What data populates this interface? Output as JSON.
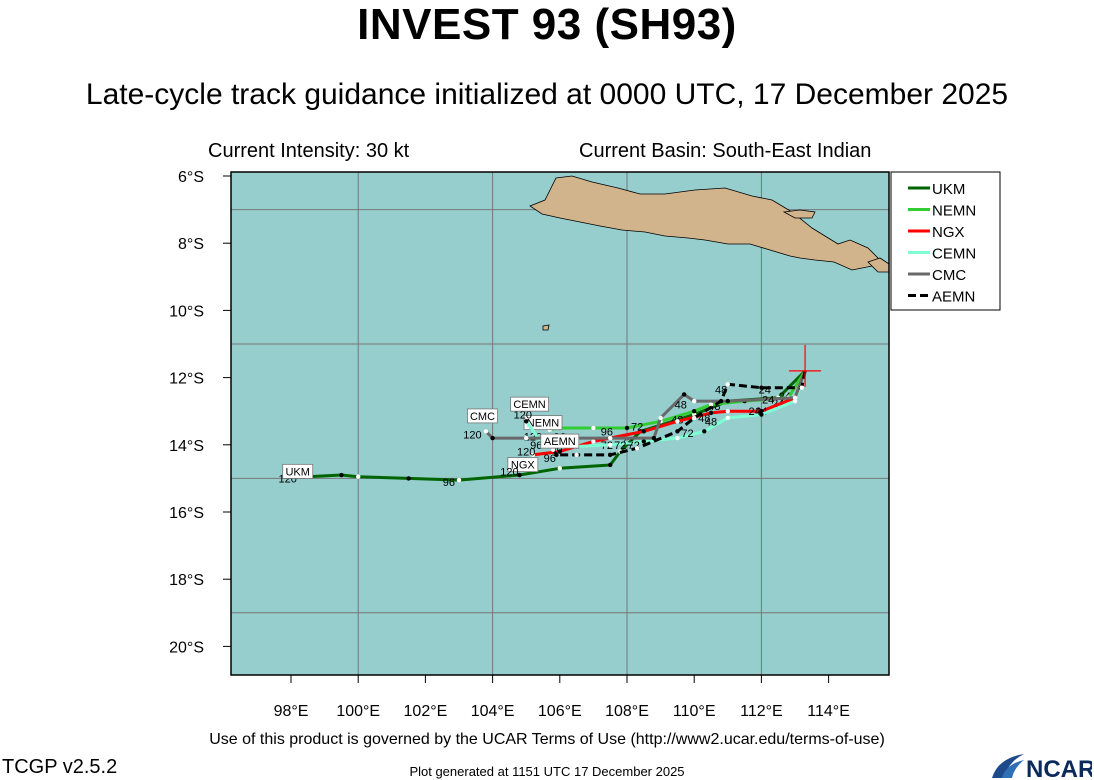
{
  "header": {
    "title": "INVEST 93 (SH93)",
    "subtitle": "Late-cycle track guidance initialized at 0000 UTC, 17 December 2025",
    "intensity": "Current Intensity: 30 kt",
    "basin": "Current Basin: South-East Indian"
  },
  "footer": {
    "terms": "Use of this product is governed by the UCAR Terms of Use (http://www2.ucar.edu/terms-of-use)",
    "version": "TCGP v2.5.2",
    "generated": "Plot generated at 1151 UTC   17 December 2025",
    "logo": "NCAR"
  },
  "map": {
    "lat_labels": [
      "6°S",
      "8°S",
      "10°S",
      "12°S",
      "14°S",
      "16°S",
      "18°S",
      "20°S"
    ],
    "lon_labels": [
      "98°E",
      "100°E",
      "102°E",
      "104°E",
      "106°E",
      "108°E",
      "110°E",
      "112°E",
      "114°E"
    ],
    "ocean_color": "#96cdcd",
    "land_color": "#d2b48c",
    "current_position": {
      "lon": 113.3,
      "lat": -11.8
    }
  },
  "legend": [
    {
      "name": "UKM",
      "color": "#006400"
    },
    {
      "name": "NEMN",
      "color": "#32cd32"
    },
    {
      "name": "NGX",
      "color": "#ff0000"
    },
    {
      "name": "CEMN",
      "color": "#7fffd4"
    },
    {
      "name": "CMC",
      "color": "#696969"
    },
    {
      "name": "AEMN",
      "color": "#000000"
    }
  ],
  "tracks": [
    {
      "name": "UKM",
      "color": "#006400",
      "dash": "",
      "points": [
        [
          113.3,
          -11.8
        ],
        [
          112.5,
          -12.6
        ],
        [
          111.0,
          -12.7
        ],
        [
          110.0,
          -13.1
        ],
        [
          108.4,
          -13.6
        ],
        [
          107.8,
          -14.2
        ],
        [
          107.5,
          -14.6
        ],
        [
          106.0,
          -14.7
        ],
        [
          104.8,
          -14.9
        ],
        [
          103.0,
          -15.05
        ],
        [
          101.5,
          -15.0
        ],
        [
          100.0,
          -14.95
        ],
        [
          99.5,
          -14.9
        ],
        [
          98.5,
          -14.95
        ],
        [
          97.9,
          -14.9
        ]
      ],
      "labels": [
        {
          "t": "24",
          "lon": 112.7,
          "lat": -12.55
        },
        {
          "t": "48",
          "lon": 110.6,
          "lat": -12.85
        },
        {
          "t": "72",
          "lon": 108.0,
          "lat": -13.9
        },
        {
          "t": "96",
          "lon": 102.7,
          "lat": -15.1
        },
        {
          "t": "120",
          "lon": 97.9,
          "lat": -15.0
        }
      ],
      "name_tag": {
        "lon": 98.2,
        "lat": -14.85
      }
    },
    {
      "name": "NEMN",
      "color": "#32cd32",
      "dash": "",
      "points": [
        [
          113.3,
          -11.8
        ],
        [
          112.8,
          -12.6
        ],
        [
          111.5,
          -12.7
        ],
        [
          110.5,
          -12.8
        ],
        [
          110.0,
          -13.0
        ],
        [
          109.0,
          -13.3
        ],
        [
          108.0,
          -13.5
        ],
        [
          107.0,
          -13.5
        ],
        [
          106.0,
          -13.5
        ],
        [
          105.7,
          -13.55
        ]
      ],
      "labels": [
        {
          "t": "24",
          "lon": 112.5,
          "lat": -12.75
        },
        {
          "t": "48",
          "lon": 109.5,
          "lat": -13.25
        },
        {
          "t": "72",
          "lon": 108.3,
          "lat": -13.45
        },
        {
          "t": "96",
          "lon": 107.4,
          "lat": -13.6
        },
        {
          "t": "120",
          "lon": 105.2,
          "lat": -13.75
        }
      ],
      "name_tag": {
        "lon": 105.5,
        "lat": -13.4
      }
    },
    {
      "name": "NGX",
      "color": "#ff0000",
      "dash": "",
      "points": [
        [
          113.3,
          -11.8
        ],
        [
          113.0,
          -12.6
        ],
        [
          112.0,
          -13.0
        ],
        [
          111.0,
          -13.0
        ],
        [
          110.5,
          -13.05
        ],
        [
          109.5,
          -13.3
        ],
        [
          108.5,
          -13.6
        ],
        [
          107.0,
          -13.9
        ],
        [
          106.0,
          -14.2
        ],
        [
          105.2,
          -14.3
        ]
      ],
      "labels": [
        {
          "t": "24",
          "lon": 112.0,
          "lat": -13.0
        },
        {
          "t": "48",
          "lon": 110.3,
          "lat": -13.2
        },
        {
          "t": "72",
          "lon": 107.4,
          "lat": -14.0
        },
        {
          "t": "96",
          "lon": 105.9,
          "lat": -14.1
        },
        {
          "t": "120",
          "lon": 105.0,
          "lat": -14.2
        }
      ],
      "name_tag": {
        "lon": 104.9,
        "lat": -14.65
      }
    },
    {
      "name": "CEMN",
      "color": "#7fffd4",
      "dash": "",
      "points": [
        [
          113.3,
          -11.8
        ],
        [
          113.0,
          -12.7
        ],
        [
          112.0,
          -13.1
        ],
        [
          111.0,
          -13.2
        ],
        [
          110.3,
          -13.6
        ],
        [
          109.5,
          -13.8
        ],
        [
          108.5,
          -13.9
        ],
        [
          107.5,
          -14.0
        ],
        [
          106.5,
          -14.05
        ],
        [
          105.5,
          -14.0
        ],
        [
          105.0,
          -13.3
        ]
      ],
      "labels": [
        {
          "t": "24",
          "lon": 111.8,
          "lat": -13.0
        },
        {
          "t": "48",
          "lon": 110.5,
          "lat": -13.3
        },
        {
          "t": "72",
          "lon": 108.2,
          "lat": -14.0
        },
        {
          "t": "96",
          "lon": 105.3,
          "lat": -14.0
        },
        {
          "t": "120",
          "lon": 104.9,
          "lat": -13.1
        }
      ],
      "name_tag": {
        "lon": 105.1,
        "lat": -12.85
      }
    },
    {
      "name": "CMC",
      "color": "#696969",
      "dash": "",
      "points": [
        [
          113.3,
          -11.8
        ],
        [
          113.0,
          -12.6
        ],
        [
          111.0,
          -12.7
        ],
        [
          110.0,
          -12.7
        ],
        [
          109.7,
          -12.5
        ],
        [
          109.0,
          -13.2
        ],
        [
          108.8,
          -13.8
        ],
        [
          107.5,
          -13.8
        ],
        [
          106.0,
          -13.8
        ],
        [
          105.0,
          -13.8
        ],
        [
          104.0,
          -13.8
        ],
        [
          103.8,
          -13.6
        ]
      ],
      "labels": [
        {
          "t": "24",
          "lon": 112.2,
          "lat": -12.65
        },
        {
          "t": "48",
          "lon": 109.6,
          "lat": -12.8
        },
        {
          "t": "72",
          "lon": 107.8,
          "lat": -14.0
        },
        {
          "t": "96",
          "lon": 106.0,
          "lat": -13.75
        },
        {
          "t": "120",
          "lon": 103.4,
          "lat": -13.7
        }
      ],
      "name_tag": {
        "lon": 103.7,
        "lat": -13.2
      }
    },
    {
      "name": "AEMN",
      "color": "#000000",
      "dash": "8 4",
      "points": [
        [
          113.3,
          -11.8
        ],
        [
          113.2,
          -12.3
        ],
        [
          112.0,
          -12.3
        ],
        [
          111.0,
          -12.2
        ],
        [
          110.8,
          -12.7
        ],
        [
          110.0,
          -13.2
        ],
        [
          109.5,
          -13.6
        ],
        [
          108.3,
          -14.1
        ],
        [
          107.5,
          -14.3
        ],
        [
          106.5,
          -14.3
        ],
        [
          105.9,
          -14.3
        ],
        [
          105.8,
          -14.15
        ]
      ],
      "labels": [
        {
          "t": "24",
          "lon": 112.1,
          "lat": -12.35
        },
        {
          "t": "48",
          "lon": 110.8,
          "lat": -12.35
        },
        {
          "t": "72",
          "lon": 109.8,
          "lat": -13.65
        },
        {
          "t": "96",
          "lon": 105.7,
          "lat": -14.4
        },
        {
          "t": "120",
          "lon": 104.5,
          "lat": -14.8
        }
      ],
      "name_tag": {
        "lon": 106.0,
        "lat": -13.95
      }
    }
  ]
}
